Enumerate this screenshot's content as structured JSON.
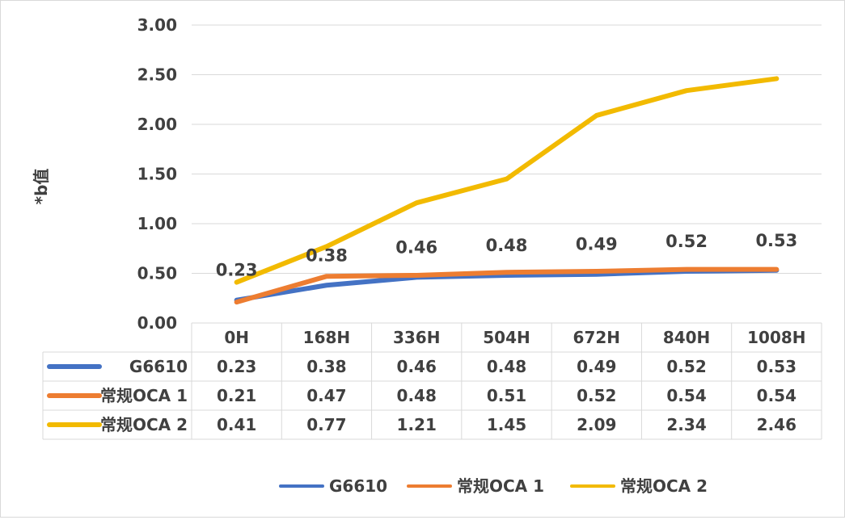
{
  "chart_data": {
    "type": "line",
    "title": "",
    "xlabel": "",
    "ylabel": "*b值",
    "ylim": [
      0,
      3
    ],
    "yticks": [
      "0.00",
      "0.50",
      "1.00",
      "1.50",
      "2.00",
      "2.50",
      "3.00"
    ],
    "categories": [
      "0H",
      "168H",
      "336H",
      "504H",
      "672H",
      "840H",
      "1008H"
    ],
    "grid": true,
    "legend": "bottom",
    "data_labels_series": "G6610",
    "series": [
      {
        "name": "G6610",
        "color": "#4472C4",
        "values": [
          0.23,
          0.38,
          0.46,
          0.48,
          0.49,
          0.52,
          0.53
        ],
        "labels": [
          "0.23",
          "0.38",
          "0.46",
          "0.48",
          "0.49",
          "0.52",
          "0.53"
        ]
      },
      {
        "name": "常规OCA 1",
        "color": "#ED7D31",
        "values": [
          0.21,
          0.47,
          0.48,
          0.51,
          0.52,
          0.54,
          0.54
        ],
        "labels": [
          "0.21",
          "0.47",
          "0.48",
          "0.51",
          "0.52",
          "0.54",
          "0.54"
        ]
      },
      {
        "name": "常规OCA 2",
        "color": "#F2BA00",
        "values": [
          0.41,
          0.77,
          1.21,
          1.45,
          2.09,
          2.34,
          2.46
        ],
        "labels": [
          "0.41",
          "0.77",
          "1.21",
          "1.45",
          "2.09",
          "2.34",
          "2.46"
        ]
      }
    ]
  }
}
